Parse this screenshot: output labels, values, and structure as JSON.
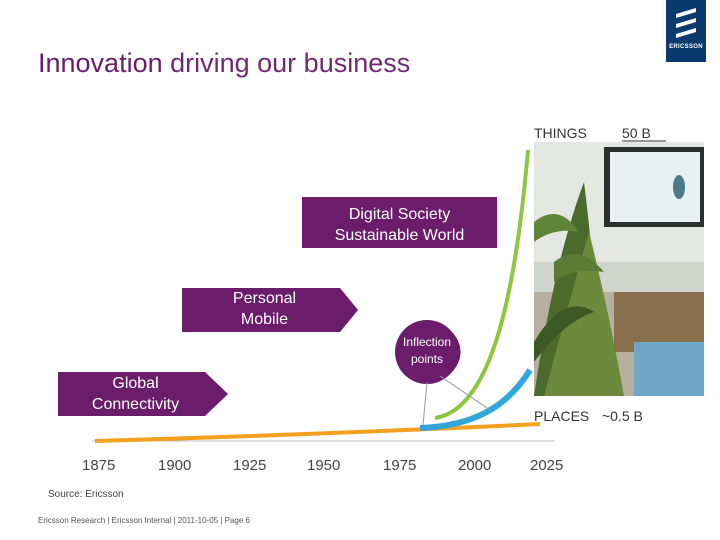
{
  "title": {
    "highlight": "Innovation",
    "rest": " driving our business"
  },
  "logo": {
    "word": "ERICSSON"
  },
  "labels": {
    "things": "THINGS",
    "things_value": "50 B",
    "places": "PLACES",
    "places_value": "~0.5 B"
  },
  "callouts": {
    "digital": [
      "Digital Society",
      "Sustainable World"
    ],
    "personal": [
      "Personal",
      "Mobile"
    ],
    "global": [
      "Global",
      "Connectivity"
    ],
    "inflection": [
      "Inflection",
      "points"
    ]
  },
  "axis": {
    "years": [
      "1875",
      "1900",
      "1925",
      "1950",
      "1975",
      "2000",
      "2025"
    ]
  },
  "source": "Source: Ericsson",
  "footer": "Ericsson Research  |  Ericsson Internal  |  2011-10-05  |  Page 6",
  "colors": {
    "purple": "#6b1c6b",
    "orange": "#f2a01d",
    "green": "#8dc63f",
    "blue": "#32a6dc",
    "logo_blue": "#0b3a6e"
  }
}
